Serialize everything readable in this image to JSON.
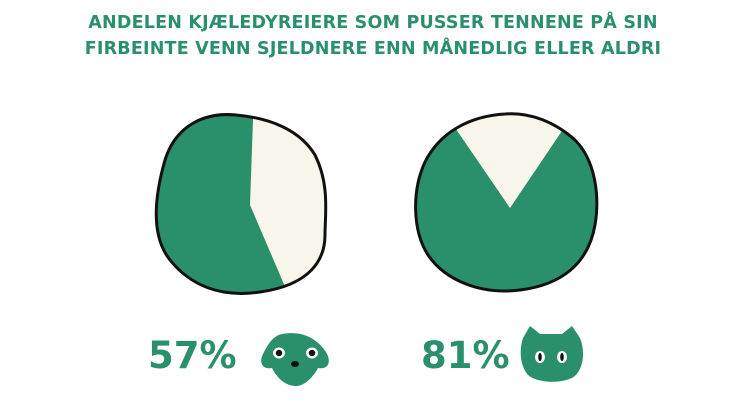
{
  "title": {
    "line1": "ANDELEN KJÆLEDYREIERE SOM PUSSER TENNENE PÅ SIN",
    "line2": "FIRBEINTE VENN SJELDNERE ENN MÅNEDLIG ELLER ALDRI"
  },
  "colors": {
    "green": "#2a8f6b",
    "cream": "#f8f5ea",
    "outline": "#111111"
  },
  "chart_data": [
    {
      "type": "pie",
      "title": "ANDELEN KJÆLEDYREIERE SOM PUSSER TENNENE PÅ SIN FIRBEINTE VENN SJELDNERE ENN MÅNEDLIG ELLER ALDRI",
      "value": 57,
      "label": "57%",
      "icon": "dog-face-icon"
    },
    {
      "type": "pie",
      "title": "ANDELEN KJÆLEDYREIERE SOM PUSSER TENNENE PÅ SIN FIRBEINTE VENN SJELDNERE ENN MÅNEDLIG ELLER ALDRI",
      "value": 81,
      "label": "81%",
      "icon": "cat-face-icon"
    }
  ]
}
